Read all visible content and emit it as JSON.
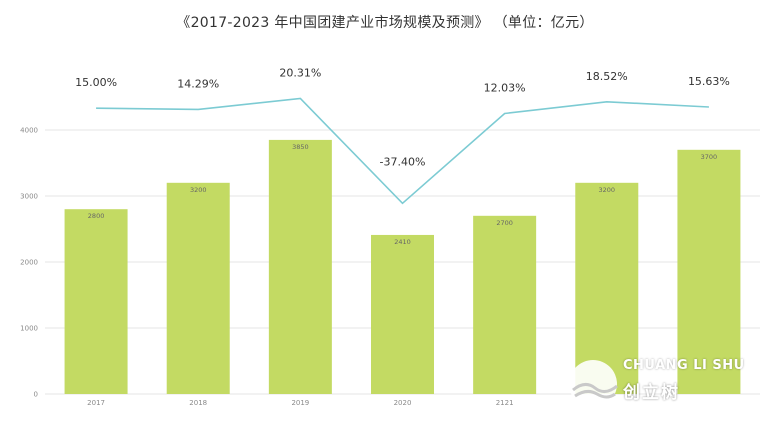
{
  "chart_data": {
    "type": "bar",
    "title": "《2017-2023 年中国团建产业市场规模及预测》 （单位：亿元）",
    "categories": [
      "2017",
      "2018",
      "2019",
      "2020",
      "2121",
      "",
      ""
    ],
    "values": [
      2800,
      3200,
      3850,
      2410,
      2700,
      3200,
      3700
    ],
    "value_labels": [
      "2800",
      "3200",
      "3850",
      "2410",
      "2700",
      "3200",
      "3700"
    ],
    "ylim": [
      0,
      4000
    ],
    "yticks": [
      "0",
      "1000",
      "2000",
      "3000",
      "4000"
    ],
    "bar_color": "#c3da63",
    "growth_series": {
      "type": "line",
      "values": [
        15.0,
        14.29,
        20.31,
        -37.4,
        12.03,
        18.52,
        15.63
      ],
      "labels": [
        "15.00%",
        "14.29%",
        "20.31%",
        "-37.40%",
        "12.03%",
        "18.52%",
        "15.63%"
      ],
      "color": "#7ccbd3"
    },
    "grid": true
  },
  "watermark": {
    "text_en": "CHUANG LI SHU",
    "text_cn": "创立树"
  }
}
